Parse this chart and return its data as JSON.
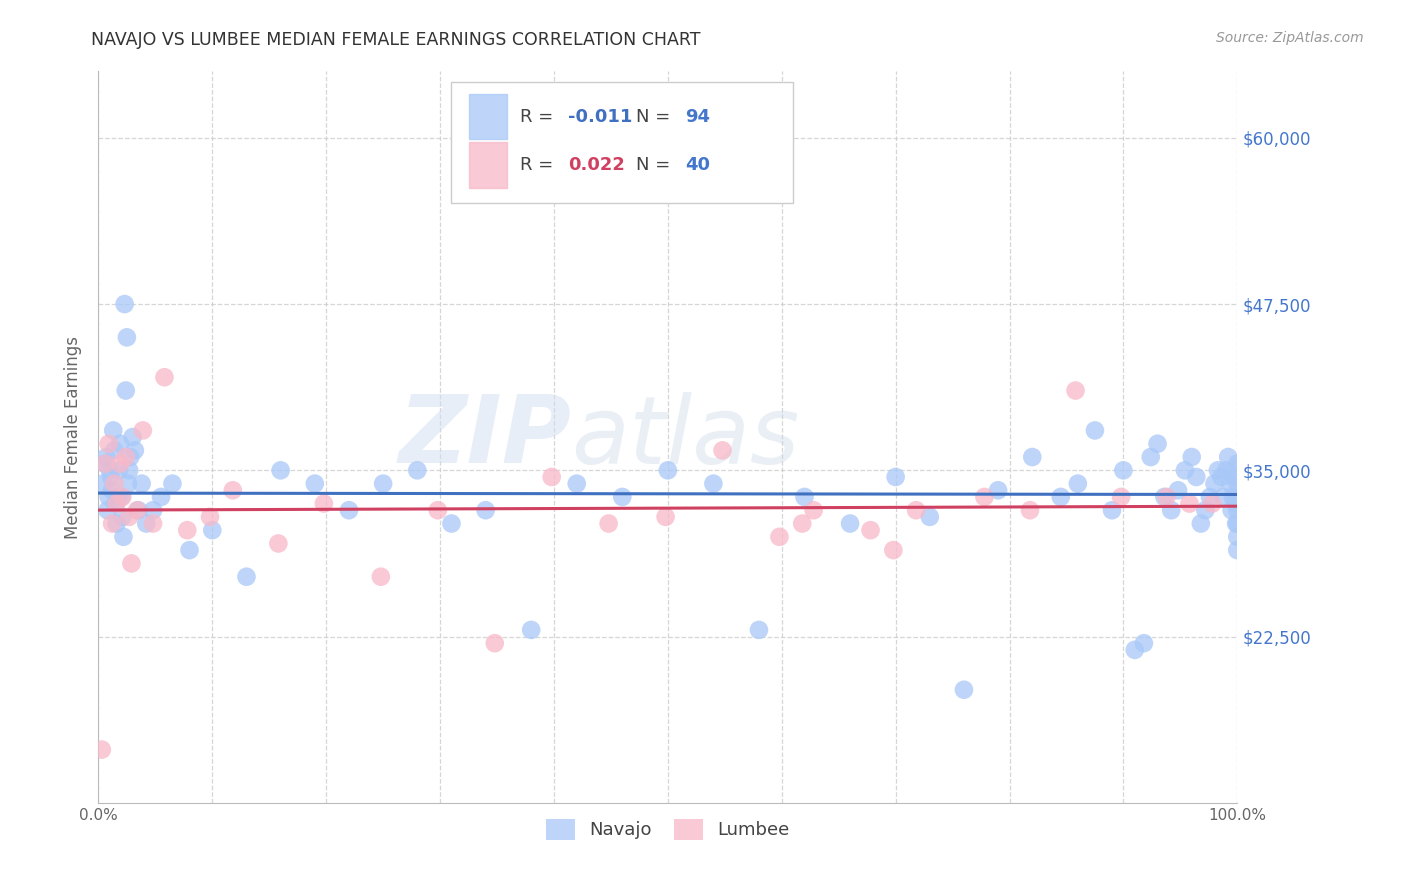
{
  "title": "NAVAJO VS LUMBEE MEDIAN FEMALE EARNINGS CORRELATION CHART",
  "source": "Source: ZipAtlas.com",
  "ylabel": "Median Female Earnings",
  "ytick_labels": [
    "$22,500",
    "$35,000",
    "$47,500",
    "$60,000"
  ],
  "ytick_values": [
    22500,
    35000,
    47500,
    60000
  ],
  "ymin": 10000,
  "ymax": 65000,
  "xmin": 0.0,
  "xmax": 1.0,
  "navajo_R": "-0.011",
  "navajo_N": "94",
  "lumbee_R": "0.022",
  "lumbee_N": "40",
  "navajo_color": "#a8c8f8",
  "lumbee_color": "#f8b8c8",
  "navajo_line_color": "#4070c0",
  "lumbee_line_color": "#d04060",
  "watermark_zip": "ZIP",
  "watermark_atlas": "atlas",
  "background_color": "#ffffff",
  "grid_color": "#cccccc",
  "navajo_x": [
    0.004,
    0.006,
    0.007,
    0.008,
    0.009,
    0.01,
    0.011,
    0.012,
    0.013,
    0.014,
    0.015,
    0.016,
    0.017,
    0.018,
    0.019,
    0.02,
    0.021,
    0.022,
    0.023,
    0.024,
    0.025,
    0.026,
    0.027,
    0.028,
    0.03,
    0.032,
    0.035,
    0.038,
    0.042,
    0.048,
    0.055,
    0.065,
    0.08,
    0.1,
    0.13,
    0.16,
    0.19,
    0.22,
    0.25,
    0.28,
    0.31,
    0.34,
    0.38,
    0.42,
    0.46,
    0.5,
    0.54,
    0.58,
    0.62,
    0.66,
    0.7,
    0.73,
    0.76,
    0.79,
    0.82,
    0.845,
    0.86,
    0.875,
    0.89,
    0.9,
    0.91,
    0.918,
    0.924,
    0.93,
    0.936,
    0.942,
    0.948,
    0.954,
    0.96,
    0.964,
    0.968,
    0.972,
    0.976,
    0.98,
    0.983,
    0.986,
    0.988,
    0.99,
    0.992,
    0.994,
    0.995,
    0.996,
    0.997,
    0.998,
    0.999,
    0.999,
    1.0,
    1.0,
    1.0,
    1.0,
    1.0,
    1.0,
    1.0,
    1.0
  ],
  "navajo_y": [
    34000,
    35500,
    36000,
    32000,
    33000,
    35000,
    34500,
    33500,
    38000,
    36500,
    32500,
    31000,
    33000,
    35000,
    37000,
    33000,
    31500,
    30000,
    47500,
    41000,
    45000,
    34000,
    35000,
    36000,
    37500,
    36500,
    32000,
    34000,
    31000,
    32000,
    33000,
    34000,
    29000,
    30500,
    27000,
    35000,
    34000,
    32000,
    34000,
    35000,
    31000,
    32000,
    23000,
    34000,
    33000,
    35000,
    34000,
    23000,
    33000,
    31000,
    34500,
    31500,
    18500,
    33500,
    36000,
    33000,
    34000,
    38000,
    32000,
    35000,
    21500,
    22000,
    36000,
    37000,
    33000,
    32000,
    33500,
    35000,
    36000,
    34500,
    31000,
    32000,
    33000,
    34000,
    35000,
    34500,
    33000,
    35000,
    36000,
    34000,
    32000,
    33000,
    34500,
    35000,
    31000,
    32500,
    33000,
    34000,
    35500,
    32000,
    31000,
    30000,
    29000,
    32500
  ],
  "lumbee_x": [
    0.003,
    0.006,
    0.009,
    0.012,
    0.014,
    0.016,
    0.019,
    0.021,
    0.024,
    0.027,
    0.029,
    0.034,
    0.039,
    0.048,
    0.058,
    0.078,
    0.098,
    0.118,
    0.158,
    0.198,
    0.248,
    0.298,
    0.348,
    0.398,
    0.448,
    0.498,
    0.548,
    0.598,
    0.618,
    0.628,
    0.678,
    0.698,
    0.718,
    0.778,
    0.818,
    0.858,
    0.898,
    0.938,
    0.958,
    0.978
  ],
  "lumbee_y": [
    14000,
    35500,
    37000,
    31000,
    34000,
    32500,
    35500,
    33000,
    36000,
    31500,
    28000,
    32000,
    38000,
    31000,
    42000,
    30500,
    31500,
    33500,
    29500,
    32500,
    27000,
    32000,
    22000,
    34500,
    31000,
    31500,
    36500,
    30000,
    31000,
    32000,
    30500,
    29000,
    32000,
    33000,
    32000,
    41000,
    33000,
    33000,
    32500,
    32500
  ]
}
